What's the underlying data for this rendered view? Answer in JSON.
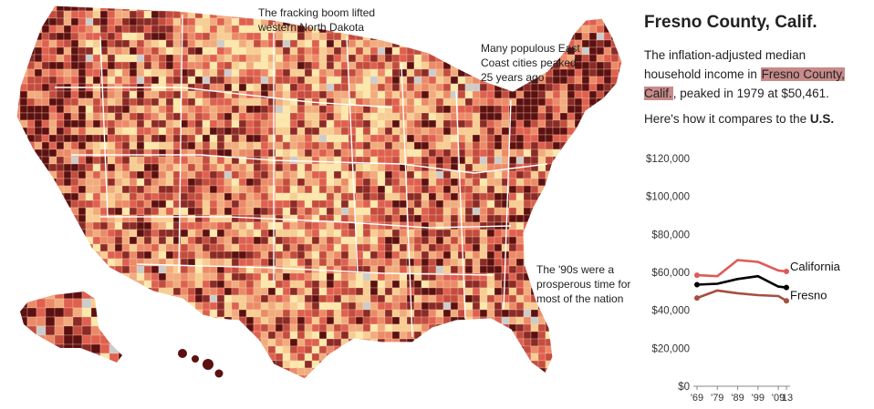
{
  "annotations": {
    "north_dakota": "The fracking boom lifted\nwestern North Dakota",
    "east_coast": "Many populous East\nCoast cities peaked\n25 years ago",
    "nineties": "The '90s were a\nprosperous time for\nmost of the nation"
  },
  "panel": {
    "title": "Fresno County, Calif.",
    "desc_prefix": "The inflation-adjusted median household income in ",
    "desc_highlight": "Fresno County, Calif.",
    "desc_suffix": ", peaked in 1979 at $50,461.",
    "compare_prefix": "Here's how it compares to the ",
    "compare_bold": "U.S."
  },
  "colors": {
    "california": "#de5b57",
    "us": "#000000",
    "fresno": "#a64f3f",
    "highlight": "#c88a8a",
    "map_palette": [
      "#5c1010",
      "#8b2a26",
      "#c44c3e",
      "#e0604f",
      "#ec8a68",
      "#f2ab7c",
      "#f8cd92",
      "#fde8ab"
    ],
    "map_missing": "#cccccc"
  },
  "chart_data": {
    "type": "line",
    "x": [
      1969,
      1979,
      1989,
      1999,
      2009,
      2013
    ],
    "xtick_labels": [
      "'69",
      "'79",
      "'89",
      "'99",
      "'09",
      "'13"
    ],
    "ytick_labels": [
      "$120,000",
      "$100,000",
      "$80,000",
      "$60,000",
      "$40,000",
      "$20,000",
      "$0"
    ],
    "ytick_values": [
      120000,
      100000,
      80000,
      60000,
      40000,
      20000,
      0
    ],
    "ylim": [
      0,
      120000
    ],
    "series": [
      {
        "name": "California",
        "color_key": "california",
        "values": [
          58500,
          58000,
          66500,
          65500,
          61000,
          60500
        ]
      },
      {
        "name": "",
        "color_key": "us",
        "values": [
          53500,
          54000,
          56500,
          58000,
          52500,
          52000
        ]
      },
      {
        "name": "Fresno",
        "color_key": "fresno",
        "values": [
          46500,
          50461,
          49000,
          48000,
          47500,
          45000
        ]
      }
    ]
  }
}
